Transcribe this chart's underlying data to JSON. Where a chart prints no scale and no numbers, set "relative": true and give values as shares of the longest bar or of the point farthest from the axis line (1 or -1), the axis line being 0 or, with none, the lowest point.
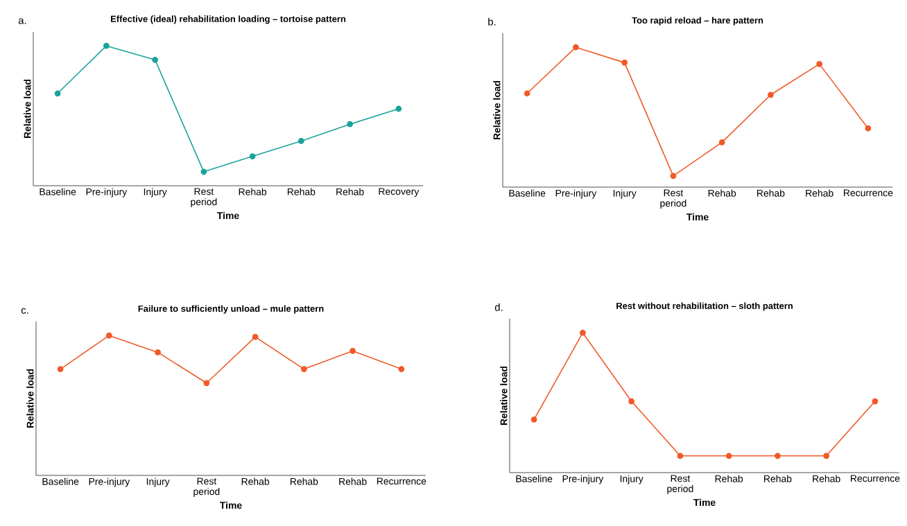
{
  "chart_data": [
    {
      "type": "line",
      "title": "Effective (ideal) rehabilitation loading – tortoise pattern",
      "xlabel": "Time",
      "ylabel": "Relative load",
      "annotations": [
        "a."
      ],
      "relative": true,
      "marker": "circle",
      "categories": [
        "Baseline",
        "Pre-injury",
        "Injury",
        "Rest period",
        "Rehab",
        "Rehab",
        "Rehab",
        "Recovery"
      ],
      "series": [
        {
          "color": "#1aa39a",
          "values": [
            0.66,
            1,
            0.9,
            0.1,
            0.21,
            0.32,
            0.44,
            0.55
          ]
        }
      ]
    },
    {
      "type": "line",
      "title": "Too rapid reload – hare pattern",
      "xlabel": "Time",
      "ylabel": "Relative load",
      "annotations": [
        "b."
      ],
      "relative": true,
      "marker": "circle",
      "categories": [
        "Baseline",
        "Pre-injury",
        "Injury",
        "Rest period",
        "Rehab",
        "Rehab",
        "Rehab",
        "Recurrence"
      ],
      "series": [
        {
          "color": "#f05a28",
          "values": [
            0.67,
            1,
            0.89,
            0.08,
            0.32,
            0.66,
            0.88,
            0.42
          ]
        }
      ]
    },
    {
      "type": "line",
      "title": "Failure to sufficiently unload – mule pattern",
      "xlabel": "Time",
      "ylabel": "Relative load",
      "annotations": [
        "c."
      ],
      "relative": true,
      "marker": "circle",
      "categories": [
        "Baseline",
        "Pre-injury",
        "Injury",
        "Rest period",
        "Rehab",
        "Rehab",
        "Rehab",
        "Recurrence"
      ],
      "series": [
        {
          "color": "#f05a28",
          "values": [
            0.76,
            1,
            0.88,
            0.66,
            0.99,
            0.76,
            0.89,
            0.76
          ]
        }
      ]
    },
    {
      "type": "line",
      "title": "Rest without rehabilitation – sloth pattern",
      "xlabel": "Time",
      "ylabel": "Relative load",
      "annotations": [
        "d."
      ],
      "relative": true,
      "marker": "circle",
      "categories": [
        "Baseline",
        "Pre-injury",
        "Injury",
        "Rest period",
        "Rehab",
        "Rehab",
        "Rehab",
        "Recurrence"
      ],
      "series": [
        {
          "color": "#f05a28",
          "values": [
            0.38,
            1,
            0.51,
            0.12,
            0.12,
            0.12,
            0.12,
            0.51
          ]
        }
      ]
    }
  ]
}
